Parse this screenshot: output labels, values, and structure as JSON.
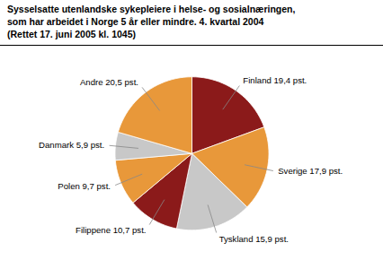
{
  "chart_data": {
    "type": "pie",
    "title": [
      "Sysselsatte utenlandske sykepleiere i helse- og sosialnæringen,",
      "som har arbeidet i Norge 5 år eller mindre. 4. kvartal 2004",
      "(Rettet 17. juni 2005 kl. 1045)"
    ],
    "categories": [
      "Finland 19,4 pst.",
      "Sverige 17,9 pst.",
      "Tyskland 15,9 pst.",
      "Filippene 10,7 pst.",
      "Polen 9,7 pst.",
      "Danmark 5,9 pst.",
      "Andre 20,5 pst."
    ],
    "values": [
      19.4,
      17.9,
      15.9,
      10.7,
      9.7,
      5.9,
      20.5
    ],
    "colors": [
      "#8B1A1A",
      "#E8983A",
      "#C8C8C8",
      "#8B1A1A",
      "#E8983A",
      "#C8C8C8",
      "#E8983A"
    ]
  }
}
